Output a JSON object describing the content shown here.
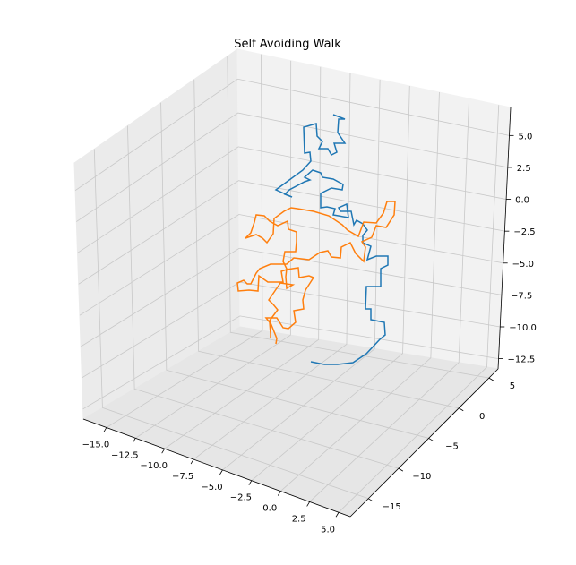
{
  "chart_data": {
    "type": "line3d",
    "title": "Self Avoiding Walk",
    "xlabel": "",
    "ylabel": "",
    "zlabel": "",
    "xlim": [
      -17,
      6
    ],
    "ylim": [
      -18,
      6.5
    ],
    "zlim": [
      -13.3,
      7.2
    ],
    "x_ticks": [
      -15.0,
      -12.5,
      -10.0,
      -7.5,
      -5.0,
      -2.5,
      0.0,
      2.5,
      5.0
    ],
    "y_ticks": [
      -15,
      -10,
      -5,
      0,
      5
    ],
    "z_ticks": [
      -12.5,
      -10.0,
      -7.5,
      -5.0,
      -2.5,
      0.0,
      2.5,
      5.0
    ],
    "x_tick_labels": [
      "−15.0",
      "−12.5",
      "−10.0",
      "−7.5",
      "−5.0",
      "−2.5",
      "0.0",
      "2.5",
      "5.0"
    ],
    "y_tick_labels": [
      "−15",
      "−10",
      "−5",
      "0",
      "5"
    ],
    "z_tick_labels": [
      "−12.5",
      "−10.0",
      "−7.5",
      "−5.0",
      "−2.5",
      "0.0",
      "2.5",
      "5.0"
    ],
    "grid": true,
    "series": [
      {
        "color": "#1f77b4",
        "points": [
          [
            347,
            404
          ],
          [
            362,
            407
          ],
          [
            377,
            407
          ],
          [
            394,
            405
          ],
          [
            409,
            395
          ],
          [
            424,
            379
          ],
          [
            430,
            374
          ],
          [
            429,
            360
          ],
          [
            414,
            357
          ],
          [
            414,
            345
          ],
          [
            408,
            345
          ],
          [
            409,
            320
          ],
          [
            425,
            320
          ],
          [
            425,
            300
          ],
          [
            433,
            296
          ],
          [
            433,
            286
          ],
          [
            420,
            286
          ],
          [
            410,
            290
          ],
          [
            414,
            275
          ],
          [
            405,
            271
          ],
          [
            405,
            263
          ],
          [
            410,
            257
          ],
          [
            405,
            250
          ],
          [
            398,
            246
          ],
          [
            395,
            251
          ],
          [
            392,
            236
          ],
          [
            380,
            236
          ],
          [
            378,
            232
          ],
          [
            387,
            228
          ],
          [
            389,
            243
          ],
          [
            372,
            240
          ],
          [
            374,
            233
          ],
          [
            365,
            231
          ],
          [
            358,
            232
          ],
          [
            358,
            216
          ],
          [
            370,
            210
          ],
          [
            382,
            212
          ],
          [
            383,
            206
          ],
          [
            372,
            200
          ],
          [
            360,
            198
          ],
          [
            358,
            193
          ],
          [
            349,
            190
          ],
          [
            340,
            198
          ],
          [
            346,
            201
          ],
          [
            340,
            203
          ],
          [
            323,
            212
          ],
          [
            318,
            217
          ],
          [
            326,
            220
          ],
          [
            308,
            212
          ],
          [
            338,
            190
          ],
          [
            347,
            180
          ],
          [
            346,
            170
          ],
          [
            340,
            171
          ],
          [
            339,
            142
          ],
          [
            353,
            138
          ],
          [
            354,
            152
          ],
          [
            360,
            158
          ],
          [
            356,
            166
          ],
          [
            366,
            166
          ],
          [
            370,
            173
          ],
          [
            376,
            170
          ],
          [
            373,
            160
          ],
          [
            385,
            160
          ],
          [
            381,
            154
          ],
          [
            377,
            148
          ],
          [
            378,
            133
          ],
          [
            385,
            133
          ],
          [
            372,
            128
          ]
        ]
      },
      {
        "color": "#ff7f0e",
        "points": [
          [
            302,
            378
          ],
          [
            302,
            373
          ],
          [
            301,
            360
          ],
          [
            297,
            355
          ],
          [
            309,
            355
          ],
          [
            316,
            366
          ],
          [
            322,
            367
          ],
          [
            330,
            360
          ],
          [
            328,
            347
          ],
          [
            339,
            345
          ],
          [
            338,
            335
          ],
          [
            341,
            324
          ],
          [
            350,
            310
          ],
          [
            345,
            308
          ],
          [
            334,
            310
          ],
          [
            333,
            299
          ],
          [
            320,
            301
          ],
          [
            314,
            303
          ],
          [
            316,
            315
          ],
          [
            299,
            315
          ],
          [
            289,
            308
          ],
          [
            288,
            325
          ],
          [
            278,
            324
          ],
          [
            266,
            325
          ],
          [
            265,
            316
          ],
          [
            272,
            313
          ],
          [
            276,
            317
          ],
          [
            280,
            317
          ],
          [
            283,
            311
          ],
          [
            286,
            305
          ],
          [
            290,
            300
          ],
          [
            302,
            295
          ],
          [
            320,
            295
          ],
          [
            328,
            288
          ],
          [
            345,
            290
          ],
          [
            357,
            282
          ],
          [
            366,
            280
          ],
          [
            370,
            287
          ],
          [
            380,
            288
          ],
          [
            381,
            276
          ],
          [
            391,
            271
          ],
          [
            397,
            283
          ],
          [
            406,
            292
          ],
          [
            408,
            276
          ],
          [
            404,
            270
          ],
          [
            415,
            265
          ],
          [
            420,
            252
          ],
          [
            431,
            254
          ],
          [
            440,
            240
          ],
          [
            441,
            225
          ],
          [
            432,
            225
          ],
          [
            428,
            238
          ],
          [
            420,
            249
          ],
          [
            406,
            248
          ],
          [
            400,
            264
          ],
          [
            388,
            257
          ],
          [
            382,
            251
          ],
          [
            367,
            241
          ],
          [
            350,
            236
          ],
          [
            332,
            233
          ],
          [
            325,
            232
          ],
          [
            317,
            236
          ],
          [
            306,
            244
          ],
          [
            305,
            261
          ],
          [
            298,
            271
          ],
          [
            293,
            266
          ],
          [
            286,
            262
          ],
          [
            274,
            266
          ],
          [
            280,
            260
          ],
          [
            284,
            248
          ],
          [
            286,
            240
          ],
          [
            295,
            241
          ],
          [
            301,
            247
          ],
          [
            310,
            252
          ],
          [
            321,
            247
          ],
          [
            322,
            256
          ],
          [
            331,
            259
          ],
          [
            331,
            270
          ],
          [
            330,
            281
          ],
          [
            318,
            281
          ],
          [
            316,
            292
          ],
          [
            320,
            300
          ],
          [
            319,
            309
          ],
          [
            320,
            322
          ],
          [
            327,
            318
          ],
          [
            313,
            316
          ],
          [
            300,
            335
          ],
          [
            305,
            340
          ],
          [
            310,
            346
          ],
          [
            301,
            358
          ],
          [
            309,
            378
          ],
          [
            308,
            384
          ]
        ]
      }
    ]
  }
}
